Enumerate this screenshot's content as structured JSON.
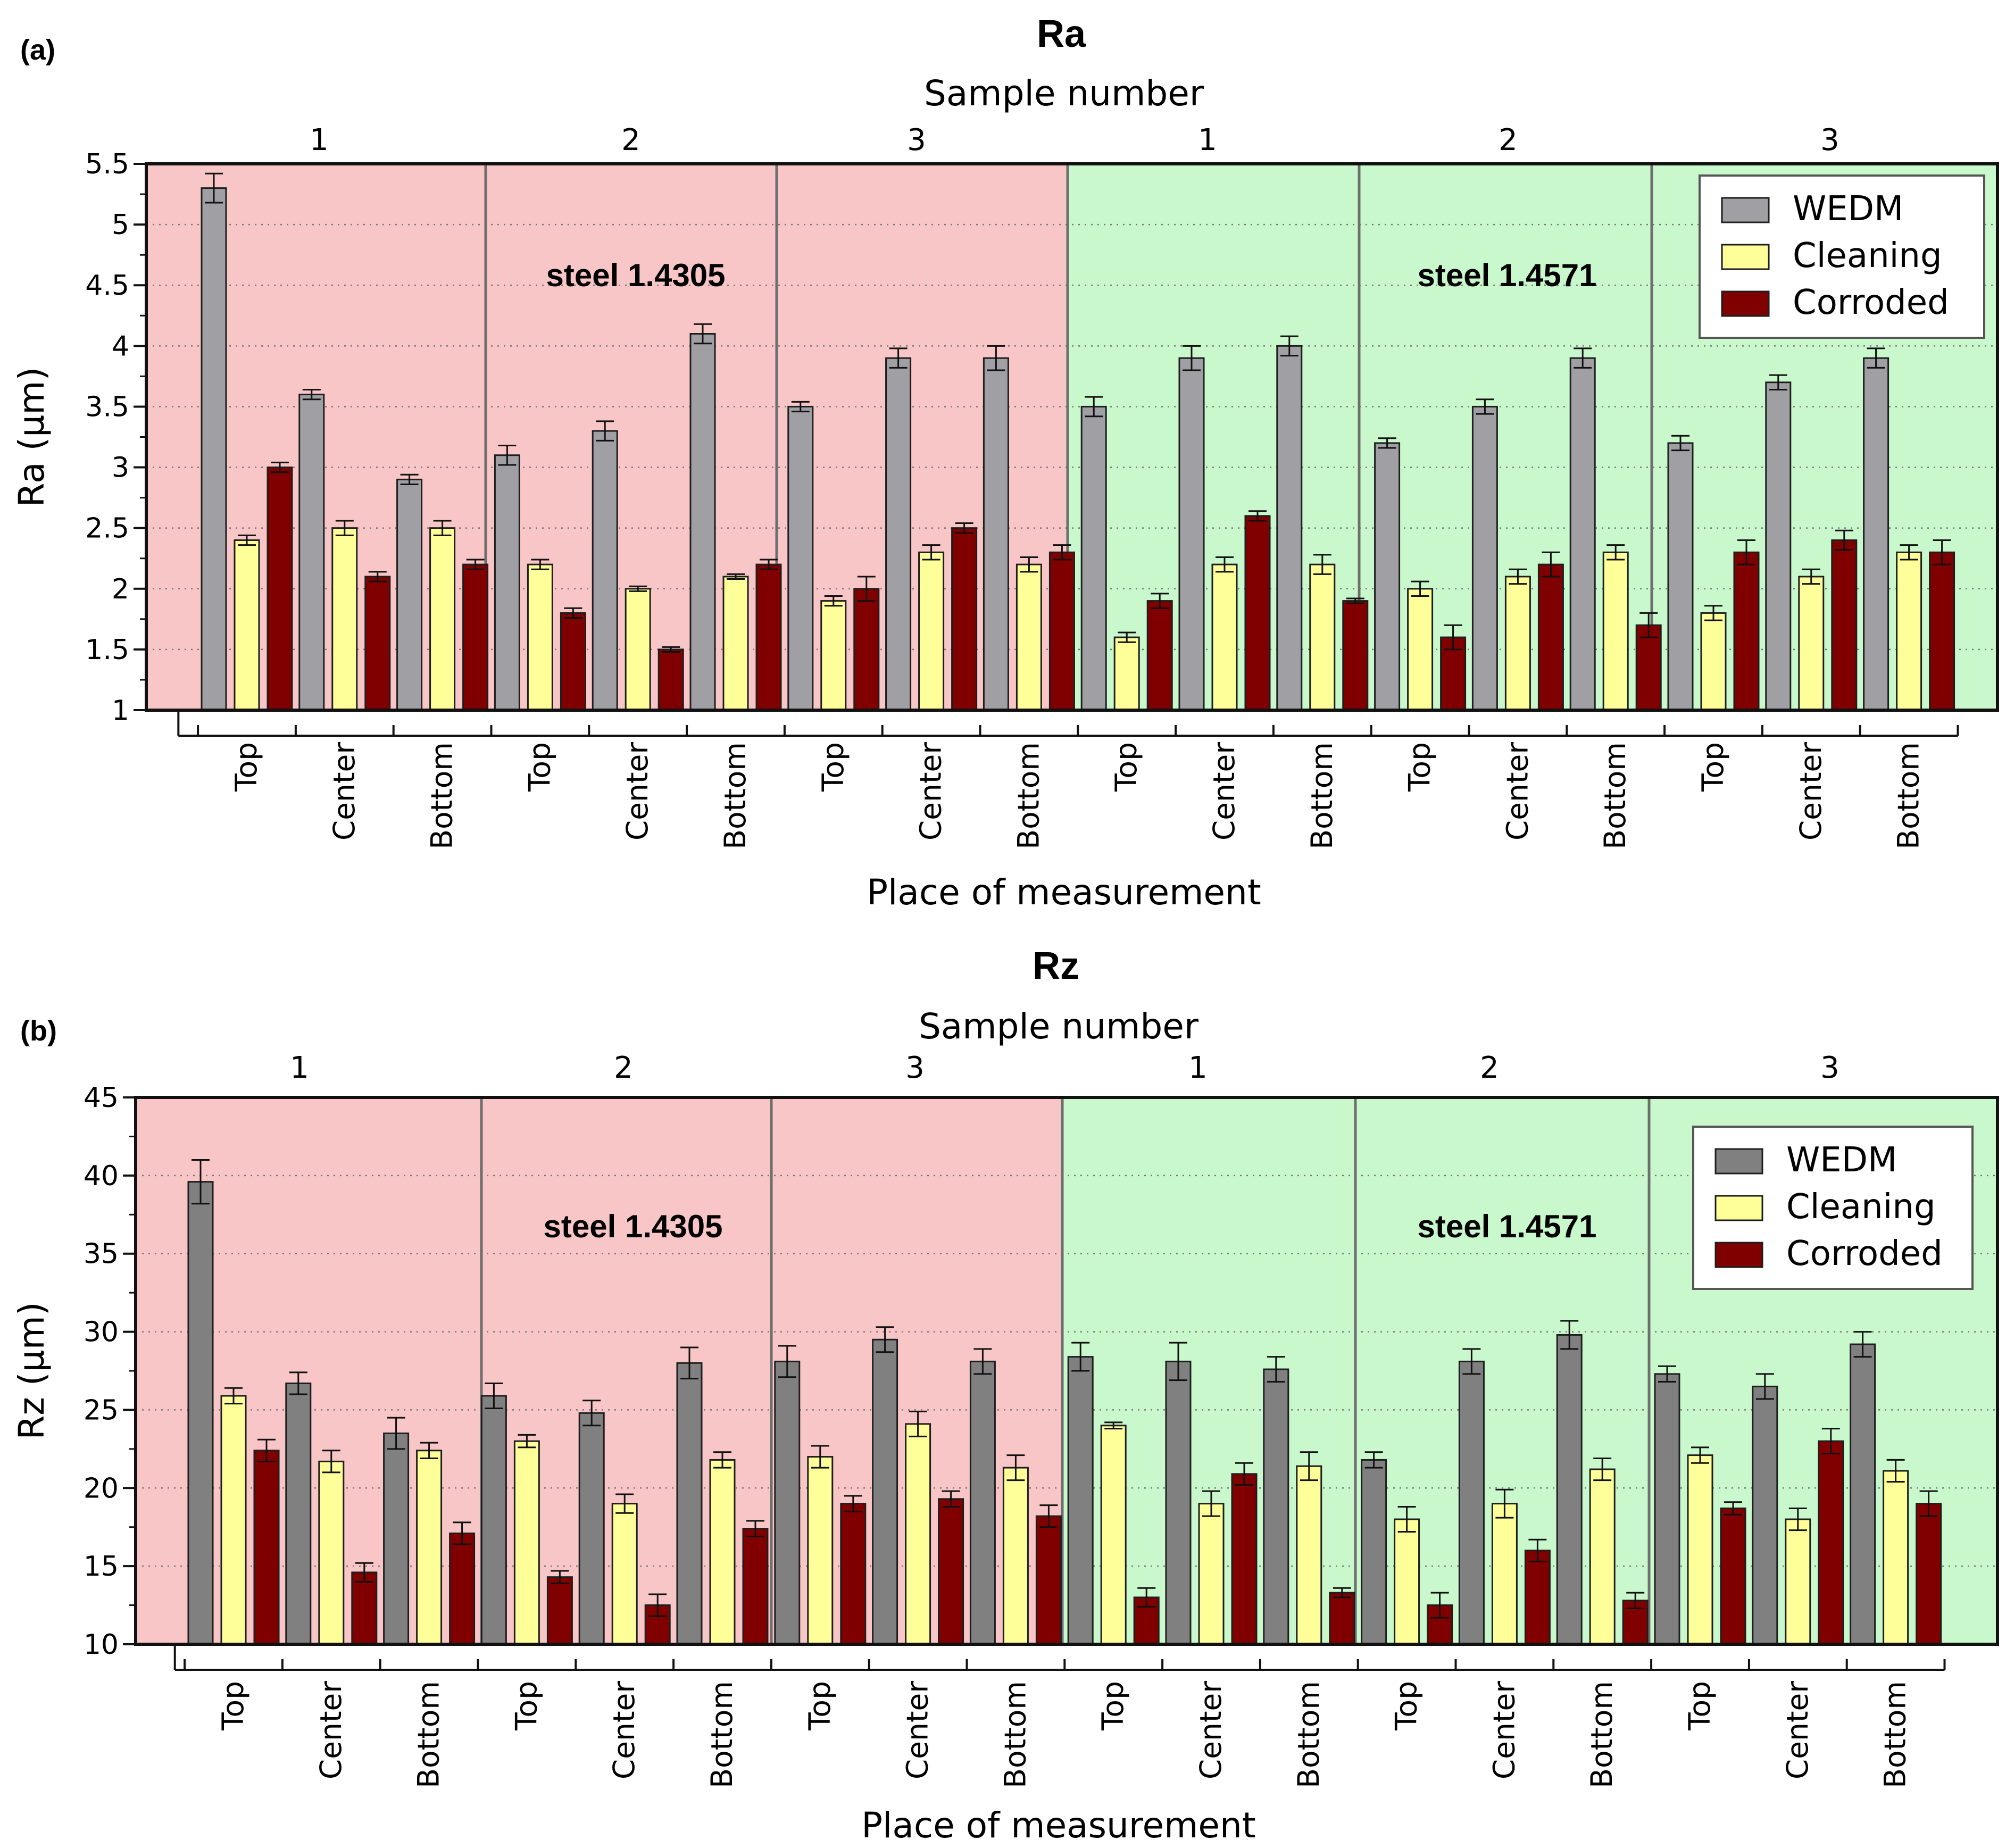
{
  "chart_data": [
    {
      "type": "bar",
      "panel_label": "(a)",
      "title": "Ra",
      "top_axis_title": "Sample number",
      "sample_numbers": [
        "1",
        "2",
        "3",
        "1",
        "2",
        "3"
      ],
      "xlabel": "Place of measurement",
      "ylabel": "Ra (µm)",
      "ylim": [
        1,
        5.5
      ],
      "yticks": [
        "1",
        "1.5",
        "2",
        "2.5",
        "3",
        "3.5",
        "4",
        "4.5",
        "5",
        "5.5"
      ],
      "grid": true,
      "legend_position": "top-right",
      "regions": [
        {
          "label": "steel 1.4305",
          "color": "#f8c6c6"
        },
        {
          "label": "steel 1.4571",
          "color": "#c8f8cc"
        }
      ],
      "categories": [
        "Top",
        "Center",
        "Bottom",
        "Top",
        "Center",
        "Bottom",
        "Top",
        "Center",
        "Bottom",
        "Top",
        "Center",
        "Bottom",
        "Top",
        "Center",
        "Bottom",
        "Top",
        "Center",
        "Bottom"
      ],
      "series": [
        {
          "name": "WEDM",
          "color": "#a0a0a4",
          "values": [
            5.3,
            3.6,
            2.9,
            3.1,
            3.3,
            4.1,
            3.5,
            3.9,
            3.9,
            3.5,
            3.9,
            4.0,
            3.2,
            3.5,
            3.9,
            3.2,
            3.7,
            3.9
          ]
        },
        {
          "name": "Cleaning",
          "color": "#ffff99",
          "values": [
            2.4,
            2.5,
            2.5,
            2.2,
            2.0,
            2.1,
            1.9,
            2.3,
            2.2,
            1.6,
            2.2,
            2.2,
            2.0,
            2.1,
            2.3,
            1.8,
            2.1,
            2.3
          ]
        },
        {
          "name": "Corroded",
          "color": "#800000",
          "values": [
            3.0,
            2.1,
            2.2,
            1.8,
            1.5,
            2.2,
            2.0,
            2.5,
            2.3,
            1.9,
            2.6,
            1.9,
            1.6,
            2.2,
            1.7,
            2.3,
            2.4,
            2.3
          ]
        }
      ],
      "errors": [
        [
          0.12,
          0.04,
          0.04,
          0.08,
          0.08,
          0.08,
          0.04,
          0.08,
          0.1,
          0.08,
          0.1,
          0.08,
          0.04,
          0.06,
          0.08,
          0.06,
          0.06,
          0.08
        ],
        [
          0.04,
          0.06,
          0.06,
          0.04,
          0.02,
          0.02,
          0.04,
          0.06,
          0.06,
          0.04,
          0.06,
          0.08,
          0.06,
          0.06,
          0.06,
          0.06,
          0.06,
          0.06
        ],
        [
          0.04,
          0.04,
          0.04,
          0.04,
          0.02,
          0.04,
          0.1,
          0.04,
          0.06,
          0.06,
          0.04,
          0.02,
          0.1,
          0.1,
          0.1,
          0.1,
          0.08,
          0.1
        ]
      ]
    },
    {
      "type": "bar",
      "panel_label": "(b)",
      "title": "Rz",
      "top_axis_title": "Sample number",
      "sample_numbers": [
        "1",
        "2",
        "3",
        "1",
        "2",
        "3"
      ],
      "xlabel": "Place of measurement",
      "ylabel": "Rz (µm)",
      "ylim": [
        10,
        45
      ],
      "yticks": [
        "10",
        "15",
        "20",
        "25",
        "30",
        "35",
        "40",
        "45"
      ],
      "grid": true,
      "legend_position": "top-right",
      "regions": [
        {
          "label": "steel 1.4305",
          "color": "#f8c6c6"
        },
        {
          "label": "steel 1.4571",
          "color": "#c8f8cc"
        }
      ],
      "categories": [
        "Top",
        "Center",
        "Bottom",
        "Top",
        "Center",
        "Bottom",
        "Top",
        "Center",
        "Bottom",
        "Top",
        "Center",
        "Bottom",
        "Top",
        "Center",
        "Bottom",
        "Top",
        "Center",
        "Bottom"
      ],
      "series": [
        {
          "name": "WEDM",
          "color": "#808080",
          "values": [
            39.6,
            26.7,
            23.5,
            25.9,
            24.8,
            28.0,
            28.1,
            29.5,
            28.1,
            28.4,
            28.1,
            27.6,
            21.8,
            28.1,
            29.8,
            27.3,
            26.5,
            29.2
          ]
        },
        {
          "name": "Cleaning",
          "color": "#ffff99",
          "values": [
            25.9,
            21.7,
            22.4,
            23.0,
            19.0,
            21.8,
            22.0,
            24.1,
            21.3,
            24.0,
            19.0,
            21.4,
            18.0,
            19.0,
            21.2,
            22.1,
            18.0,
            21.1
          ]
        },
        {
          "name": "Corroded",
          "color": "#800000",
          "values": [
            22.4,
            14.6,
            17.1,
            14.3,
            12.5,
            17.4,
            19.0,
            19.3,
            18.2,
            13.0,
            20.9,
            13.3,
            12.5,
            16.0,
            12.8,
            18.7,
            23.0,
            19.0
          ]
        }
      ],
      "errors": [
        [
          1.4,
          0.7,
          1.0,
          0.8,
          0.8,
          1.0,
          1.0,
          0.8,
          0.8,
          0.9,
          1.2,
          0.8,
          0.5,
          0.8,
          0.9,
          0.5,
          0.8,
          0.8
        ],
        [
          0.5,
          0.7,
          0.5,
          0.4,
          0.6,
          0.5,
          0.7,
          0.8,
          0.8,
          0.2,
          0.8,
          0.9,
          0.8,
          0.9,
          0.7,
          0.5,
          0.7,
          0.7
        ],
        [
          0.7,
          0.6,
          0.7,
          0.4,
          0.7,
          0.5,
          0.5,
          0.5,
          0.7,
          0.6,
          0.7,
          0.3,
          0.8,
          0.7,
          0.5,
          0.4,
          0.8,
          0.8
        ]
      ]
    }
  ]
}
